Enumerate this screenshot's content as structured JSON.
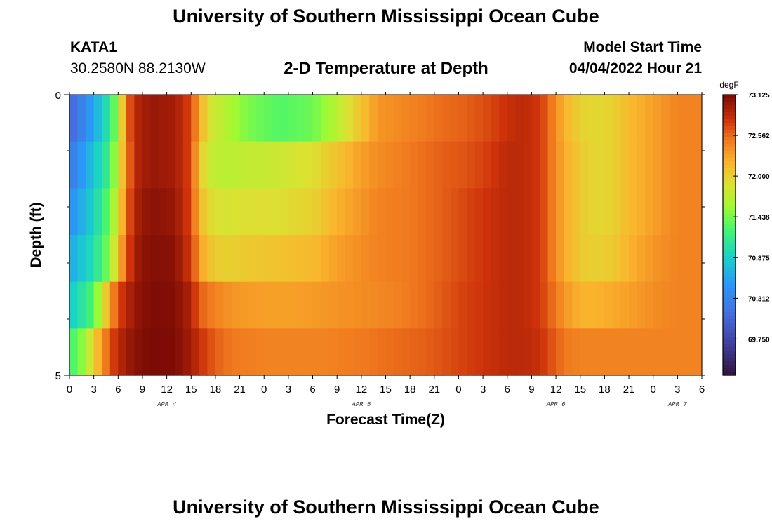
{
  "page_title": "University of Southern Mississippi Ocean Cube",
  "footer_title": "University of Southern Mississippi Ocean Cube",
  "station": {
    "id": "KATA1",
    "coords": "30.2580N  88.2130W"
  },
  "model": {
    "label": "Model Start Time",
    "start": "04/04/2022 Hour 21"
  },
  "chart_data": {
    "type": "heatmap",
    "title": "2-D Temperature at Depth",
    "xlabel": "Forecast Time(Z)",
    "ylabel": "Depth (ft)",
    "units": "degF",
    "x_ticks": [
      "0",
      "3",
      "6",
      "9",
      "12",
      "15",
      "18",
      "21",
      "0",
      "3",
      "6",
      "9",
      "12",
      "15",
      "18",
      "21",
      "0",
      "3",
      "6",
      "9",
      "12",
      "15",
      "18",
      "21",
      "0",
      "3",
      "6"
    ],
    "day_labels": [
      {
        "label": "APR 4",
        "hour": 12
      },
      {
        "label": "APR 5",
        "hour": 36
      },
      {
        "label": "APR 6",
        "hour": 60
      },
      {
        "label": "APR 7",
        "hour": 75
      }
    ],
    "x_range": [
      0,
      78
    ],
    "y_ticks": [
      "0",
      "5"
    ],
    "y_range": [
      0,
      5
    ],
    "depth_layers": 6,
    "hours_per_column": 1,
    "colorbar": {
      "min": 69.25,
      "max": 73.125,
      "ticks": [
        "73.125",
        "72.562",
        "72.000",
        "71.438",
        "70.875",
        "70.312",
        "69.750"
      ],
      "tick_values": [
        73.125,
        72.562,
        72.0,
        71.438,
        70.875,
        70.312,
        69.75
      ]
    },
    "layer_series": [
      {
        "name": "layer-1",
        "knots": [
          [
            0,
            70.0
          ],
          [
            3,
            70.6
          ],
          [
            5,
            71.1
          ],
          [
            6,
            71.6
          ],
          [
            7,
            72.5
          ],
          [
            8,
            72.85
          ],
          [
            10,
            73.0
          ],
          [
            13,
            72.95
          ],
          [
            15,
            72.7
          ],
          [
            16,
            72.3
          ],
          [
            17,
            71.9
          ],
          [
            19,
            71.7
          ],
          [
            22,
            71.45
          ],
          [
            26,
            71.3
          ],
          [
            30,
            71.4
          ],
          [
            33,
            71.7
          ],
          [
            36,
            72.1
          ],
          [
            38,
            72.35
          ],
          [
            42,
            72.45
          ],
          [
            46,
            72.55
          ],
          [
            49,
            72.6
          ],
          [
            52,
            72.7
          ],
          [
            54,
            72.8
          ],
          [
            56,
            72.85
          ],
          [
            58,
            72.75
          ],
          [
            59,
            72.6
          ],
          [
            60,
            72.4
          ],
          [
            61,
            72.2
          ],
          [
            63,
            72.0
          ],
          [
            65,
            71.95
          ],
          [
            67,
            72.0
          ],
          [
            69,
            72.15
          ],
          [
            72,
            72.3
          ],
          [
            75,
            72.45
          ],
          [
            78,
            72.45
          ]
        ]
      },
      {
        "name": "layer-2",
        "knots": [
          [
            0,
            70.2
          ],
          [
            3,
            70.8
          ],
          [
            5,
            71.2
          ],
          [
            6,
            71.8
          ],
          [
            7,
            72.4
          ],
          [
            8,
            72.85
          ],
          [
            10,
            73.0
          ],
          [
            13,
            72.95
          ],
          [
            15,
            72.7
          ],
          [
            16,
            72.1
          ],
          [
            17,
            71.8
          ],
          [
            19,
            71.7
          ],
          [
            22,
            71.75
          ],
          [
            26,
            71.8
          ],
          [
            30,
            71.9
          ],
          [
            33,
            72.1
          ],
          [
            36,
            72.3
          ],
          [
            38,
            72.4
          ],
          [
            42,
            72.5
          ],
          [
            46,
            72.6
          ],
          [
            49,
            72.65
          ],
          [
            52,
            72.75
          ],
          [
            54,
            72.85
          ],
          [
            56,
            72.85
          ],
          [
            58,
            72.75
          ],
          [
            59,
            72.6
          ],
          [
            60,
            72.4
          ],
          [
            61,
            72.25
          ],
          [
            63,
            72.05
          ],
          [
            65,
            71.95
          ],
          [
            67,
            72.0
          ],
          [
            69,
            72.15
          ],
          [
            72,
            72.3
          ],
          [
            75,
            72.45
          ],
          [
            78,
            72.45
          ]
        ]
      },
      {
        "name": "layer-3",
        "knots": [
          [
            0,
            70.4
          ],
          [
            3,
            70.9
          ],
          [
            5,
            71.4
          ],
          [
            6,
            71.9
          ],
          [
            7,
            72.5
          ],
          [
            8,
            72.9
          ],
          [
            10,
            73.05
          ],
          [
            13,
            73.0
          ],
          [
            15,
            72.7
          ],
          [
            16,
            72.2
          ],
          [
            17,
            71.95
          ],
          [
            19,
            71.85
          ],
          [
            22,
            71.9
          ],
          [
            26,
            71.9
          ],
          [
            30,
            72.0
          ],
          [
            33,
            72.2
          ],
          [
            36,
            72.35
          ],
          [
            38,
            72.45
          ],
          [
            42,
            72.5
          ],
          [
            46,
            72.6
          ],
          [
            49,
            72.7
          ],
          [
            52,
            72.8
          ],
          [
            54,
            72.85
          ],
          [
            56,
            72.85
          ],
          [
            58,
            72.75
          ],
          [
            59,
            72.6
          ],
          [
            60,
            72.4
          ],
          [
            61,
            72.25
          ],
          [
            63,
            72.05
          ],
          [
            65,
            71.95
          ],
          [
            67,
            72.0
          ],
          [
            69,
            72.15
          ],
          [
            72,
            72.3
          ],
          [
            75,
            72.45
          ],
          [
            78,
            72.45
          ]
        ]
      },
      {
        "name": "layer-4",
        "knots": [
          [
            0,
            70.6
          ],
          [
            3,
            71.0
          ],
          [
            5,
            71.5
          ],
          [
            6,
            72.1
          ],
          [
            7,
            72.6
          ],
          [
            8,
            72.95
          ],
          [
            10,
            73.08
          ],
          [
            13,
            73.05
          ],
          [
            15,
            72.75
          ],
          [
            16,
            72.35
          ],
          [
            17,
            72.1
          ],
          [
            19,
            72.0
          ],
          [
            22,
            72.05
          ],
          [
            26,
            72.1
          ],
          [
            30,
            72.15
          ],
          [
            33,
            72.3
          ],
          [
            36,
            72.4
          ],
          [
            38,
            72.45
          ],
          [
            42,
            72.5
          ],
          [
            46,
            72.6
          ],
          [
            49,
            72.7
          ],
          [
            52,
            72.8
          ],
          [
            54,
            72.85
          ],
          [
            56,
            72.85
          ],
          [
            58,
            72.75
          ],
          [
            59,
            72.6
          ],
          [
            60,
            72.4
          ],
          [
            61,
            72.25
          ],
          [
            63,
            72.05
          ],
          [
            65,
            72.0
          ],
          [
            67,
            72.05
          ],
          [
            69,
            72.2
          ],
          [
            72,
            72.35
          ],
          [
            75,
            72.45
          ],
          [
            78,
            72.45
          ]
        ]
      },
      {
        "name": "layer-5",
        "knots": [
          [
            0,
            70.8
          ],
          [
            3,
            71.3
          ],
          [
            4,
            71.8
          ],
          [
            5,
            72.3
          ],
          [
            6,
            72.7
          ],
          [
            8,
            73.0
          ],
          [
            10,
            73.1
          ],
          [
            13,
            73.08
          ],
          [
            15,
            72.9
          ],
          [
            16,
            72.6
          ],
          [
            18,
            72.45
          ],
          [
            20,
            72.35
          ],
          [
            24,
            72.3
          ],
          [
            28,
            72.3
          ],
          [
            32,
            72.35
          ],
          [
            36,
            72.4
          ],
          [
            40,
            72.45
          ],
          [
            44,
            72.55
          ],
          [
            48,
            72.7
          ],
          [
            52,
            72.8
          ],
          [
            54,
            72.85
          ],
          [
            56,
            72.85
          ],
          [
            58,
            72.75
          ],
          [
            60,
            72.5
          ],
          [
            61,
            72.35
          ],
          [
            63,
            72.2
          ],
          [
            65,
            72.2
          ],
          [
            67,
            72.25
          ],
          [
            69,
            72.3
          ],
          [
            72,
            72.4
          ],
          [
            75,
            72.45
          ],
          [
            78,
            72.45
          ]
        ]
      },
      {
        "name": "layer-6",
        "knots": [
          [
            0,
            71.2
          ],
          [
            2,
            71.6
          ],
          [
            3,
            72.0
          ],
          [
            4,
            72.35
          ],
          [
            5,
            72.65
          ],
          [
            6,
            72.85
          ],
          [
            8,
            73.05
          ],
          [
            10,
            73.12
          ],
          [
            13,
            73.1
          ],
          [
            15,
            72.95
          ],
          [
            16,
            72.8
          ],
          [
            18,
            72.6
          ],
          [
            20,
            72.5
          ],
          [
            24,
            72.45
          ],
          [
            28,
            72.45
          ],
          [
            32,
            72.45
          ],
          [
            36,
            72.5
          ],
          [
            40,
            72.55
          ],
          [
            44,
            72.6
          ],
          [
            48,
            72.7
          ],
          [
            52,
            72.8
          ],
          [
            54,
            72.85
          ],
          [
            56,
            72.85
          ],
          [
            58,
            72.8
          ],
          [
            60,
            72.6
          ],
          [
            61,
            72.5
          ],
          [
            63,
            72.45
          ],
          [
            65,
            72.45
          ],
          [
            67,
            72.45
          ],
          [
            69,
            72.45
          ],
          [
            72,
            72.45
          ],
          [
            75,
            72.45
          ],
          [
            78,
            72.45
          ]
        ]
      }
    ]
  }
}
